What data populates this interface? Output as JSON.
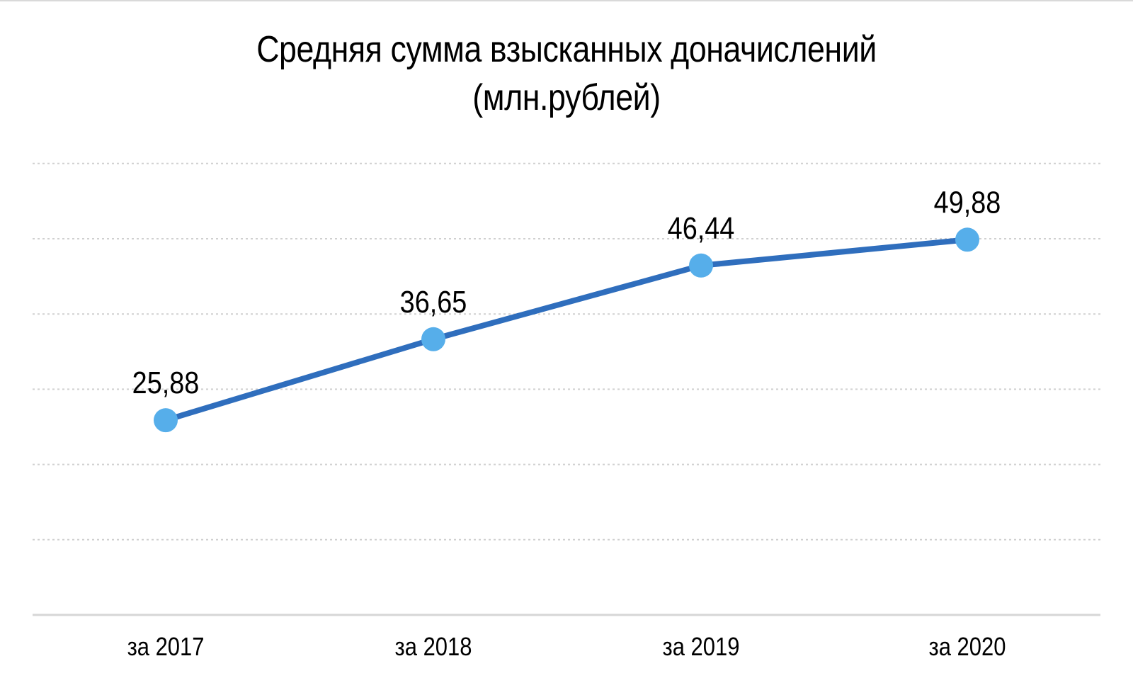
{
  "chart_data": {
    "type": "line",
    "title": "Средняя сумма взысканных доначислений",
    "subtitle": "(млн.рублей)",
    "categories": [
      "за 2017",
      "за 2018",
      "за 2019",
      "за 2020"
    ],
    "series": [
      {
        "values": [
          25.88,
          36.65,
          46.44,
          49.88
        ],
        "labels": [
          "25,88",
          "36,65",
          "46,44",
          "49,88"
        ]
      }
    ],
    "ylim": [
      0,
      60
    ],
    "grid": true,
    "legend": "none",
    "colors": {
      "line": "#2f6ebd",
      "marker": "#56aeea"
    }
  }
}
